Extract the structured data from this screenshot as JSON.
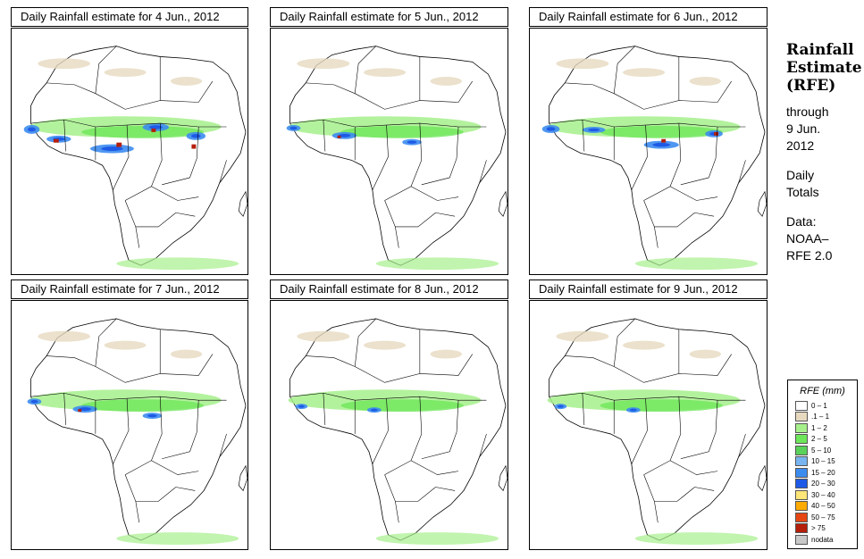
{
  "panels": [
    {
      "title": "Daily Rainfall estimate for  4 Jun., 2012",
      "intensity": "very-heavy"
    },
    {
      "title": "Daily Rainfall estimate for  5 Jun., 2012",
      "intensity": "moderate"
    },
    {
      "title": "Daily Rainfall estimate for  6 Jun., 2012",
      "intensity": "heavy"
    },
    {
      "title": "Daily Rainfall estimate for  7 Jun., 2012",
      "intensity": "moderate"
    },
    {
      "title": "Daily Rainfall estimate for  8 Jun., 2012",
      "intensity": "light"
    },
    {
      "title": "Daily Rainfall estimate for  9 Jun., 2012",
      "intensity": "light"
    }
  ],
  "sidebar": {
    "title_line1": "Rainfall",
    "title_line2": "Estimate",
    "title_line3": "(RFE)",
    "through_label": "through",
    "through_date_line1": "9 Jun.",
    "through_date_line2": "2012",
    "totals_line1": "Daily",
    "totals_line2": "Totals",
    "data_label": "Data:",
    "data_source_line1": "NOAA–",
    "data_source_line2": "RFE 2.0"
  },
  "legend": {
    "title": "RFE (mm)",
    "items": [
      {
        "label": "0 – 1",
        "color": "#ffffff"
      },
      {
        "label": ".1 – 1",
        "color": "#e6d9bf"
      },
      {
        "label": "1 – 2",
        "color": "#a6f08c"
      },
      {
        "label": "2 – 5",
        "color": "#6ee65a"
      },
      {
        "label": "5 – 10",
        "color": "#5ad25a"
      },
      {
        "label": "10 – 15",
        "color": "#78b4f0"
      },
      {
        "label": "15 – 20",
        "color": "#3c8cf0"
      },
      {
        "label": "20 – 30",
        "color": "#1e5ae6"
      },
      {
        "label": "30 – 40",
        "color": "#ffe678"
      },
      {
        "label": "40 – 50",
        "color": "#ffaa00"
      },
      {
        "label": "50 – 75",
        "color": "#e64614"
      },
      {
        "label": "> 75",
        "color": "#b41e0a"
      },
      {
        "label": "nodata",
        "color": "#c8c8c8"
      }
    ]
  }
}
